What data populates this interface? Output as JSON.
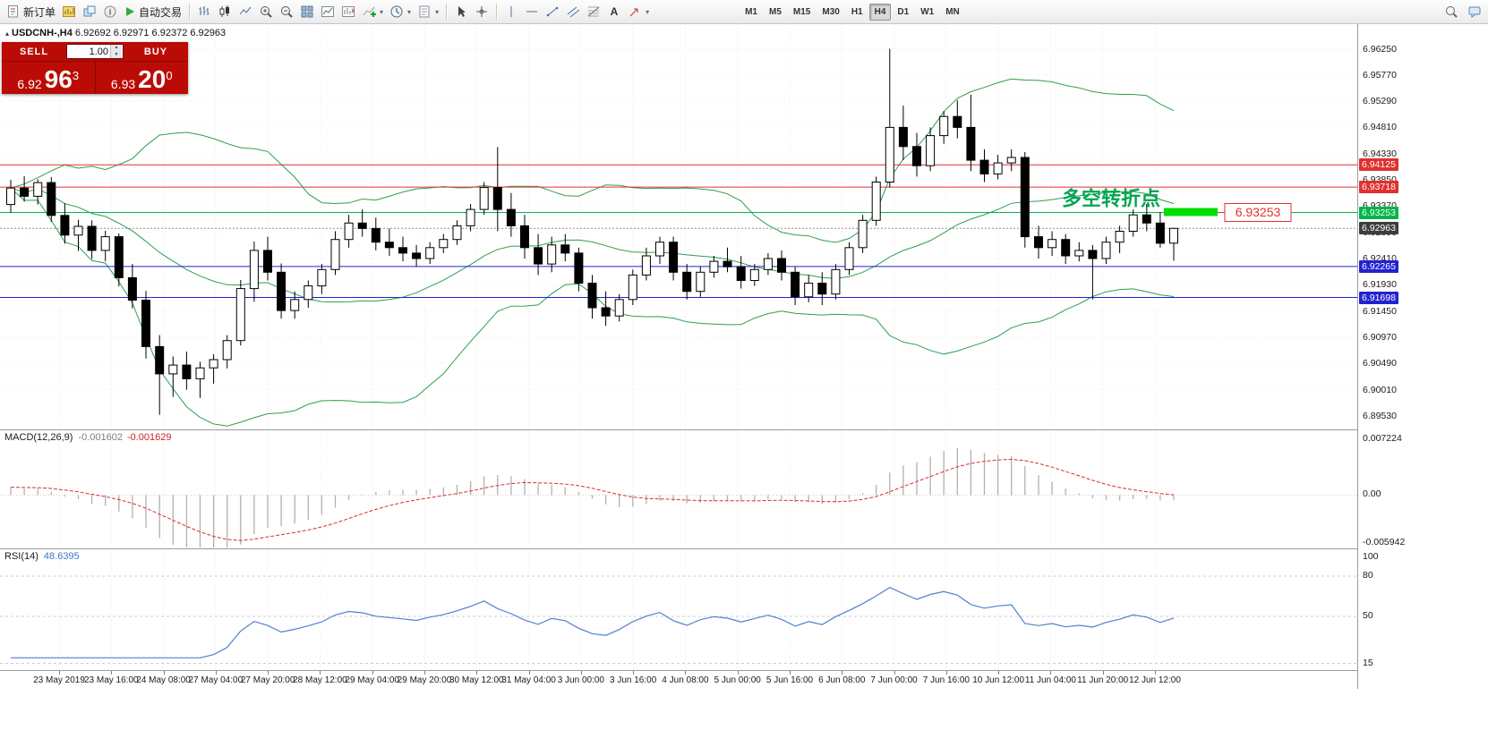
{
  "toolbar": {
    "new_order_label": "新订单",
    "auto_trading_label": "自动交易",
    "timeframes": [
      "M1",
      "M5",
      "M15",
      "M30",
      "H1",
      "H4",
      "D1",
      "W1",
      "MN"
    ],
    "active_timeframe": "H4",
    "caret": "▾"
  },
  "chart": {
    "marker": "▴",
    "symbol": "USDCNH-,H4",
    "ohlc": "6.92692 6.92971 6.92372 6.92963",
    "annotation": "多空转折点",
    "annotation_color": "#00a651",
    "pivot_value": 6.93253,
    "price_label_box": "6.93253",
    "price_label_color": "#e03030"
  },
  "trade_panel": {
    "sell_label": "SELL",
    "buy_label": "BUY",
    "volume": "1.00",
    "spinner_up": "▲",
    "spinner_down": "▼",
    "sell": {
      "prefix": "6.92",
      "pips": "96",
      "point": "3"
    },
    "buy": {
      "prefix": "6.93",
      "pips": "20",
      "point": "0"
    }
  },
  "price_axis": {
    "max": 6.967,
    "min": 6.893,
    "labels": [
      "6.96250",
      "6.95770",
      "6.95290",
      "6.94810",
      "6.94330",
      "6.93850",
      "6.93370",
      "6.92890",
      "6.92410",
      "6.91930",
      "6.91450",
      "6.90970",
      "6.90490",
      "6.90010",
      "6.89530"
    ]
  },
  "hlines": [
    {
      "value": 6.94125,
      "badge": "6.94125",
      "color": "#e03030"
    },
    {
      "value": 6.93718,
      "badge": "6.93718",
      "color": "#e03030"
    },
    {
      "value": 6.93253,
      "badge": "6.93253",
      "color": "#00b44a"
    },
    {
      "value": 6.92265,
      "badge": "6.92265",
      "color": "#2222d0"
    },
    {
      "value": 6.91698,
      "badge": "6.91698",
      "color": "#2222d0"
    }
  ],
  "current_price": {
    "value": 6.92963,
    "badge": "6.92963",
    "color": "#3d3d3d"
  },
  "macd": {
    "label": "MACD(12,26,9)",
    "value_main": "-0.001602",
    "value_signal": "-0.001629",
    "axis": [
      "0.007224",
      "0.00",
      "-0.005942"
    ]
  },
  "rsi": {
    "label": "RSI(14)",
    "value": "48.6395",
    "axis": [
      "100",
      "80",
      "50",
      "15"
    ],
    "levels": [
      80,
      50,
      15
    ]
  },
  "time_axis": [
    "23 May 2019",
    "23 May 16:00",
    "24 May 08:00",
    "27 May 04:00",
    "27 May 20:00",
    "28 May 12:00",
    "29 May 04:00",
    "29 May 20:00",
    "30 May 12:00",
    "31 May 04:00",
    "3 Jun 00:00",
    "3 Jun 16:00",
    "4 Jun 08:00",
    "5 Jun 00:00",
    "5 Jun 16:00",
    "6 Jun 08:00",
    "7 Jun 00:00",
    "7 Jun 16:00",
    "10 Jun 12:00",
    "11 Jun 04:00",
    "11 Jun 20:00",
    "12 Jun 12:00"
  ],
  "chart_data": {
    "type": "candlestick",
    "symbol": "USDCNH-",
    "timeframe": "H4",
    "price_range": [
      6.893,
      6.967
    ],
    "levels": [
      6.94125,
      6.93718,
      6.93253,
      6.92265,
      6.91698
    ],
    "indicators": [
      {
        "type": "bollinger",
        "period": 20,
        "deviation": 2,
        "color": "#2f9e4e"
      },
      {
        "type": "macd",
        "fast": 12,
        "slow": 26,
        "signal": 9,
        "current": [
          -0.001602,
          -0.001629
        ]
      },
      {
        "type": "rsi",
        "period": 14,
        "current": 48.6395
      }
    ],
    "candles": [
      [
        6.934,
        6.9385,
        6.9325,
        6.937
      ],
      [
        6.937,
        6.9392,
        6.9345,
        6.9355
      ],
      [
        6.9355,
        6.9386,
        6.934,
        6.938
      ],
      [
        6.938,
        6.939,
        6.9308,
        6.932
      ],
      [
        6.932,
        6.9342,
        6.9268,
        6.9284
      ],
      [
        6.9284,
        6.9312,
        6.9255,
        6.93
      ],
      [
        6.93,
        6.9311,
        6.924,
        6.9256
      ],
      [
        6.9256,
        6.9292,
        6.9236,
        6.9281
      ],
      [
        6.9281,
        6.9287,
        6.919,
        6.9206
      ],
      [
        6.9206,
        6.9231,
        6.915,
        6.9165
      ],
      [
        6.9165,
        6.9182,
        6.9058,
        6.908
      ],
      [
        6.908,
        6.9101,
        6.8955,
        6.903
      ],
      [
        6.903,
        6.9062,
        6.8988,
        6.9046
      ],
      [
        6.9046,
        6.9071,
        6.9001,
        6.9021
      ],
      [
        6.9021,
        6.9052,
        6.8986,
        6.9041
      ],
      [
        6.9041,
        6.9066,
        6.9012,
        6.9056
      ],
      [
        6.9056,
        6.9101,
        6.904,
        6.9091
      ],
      [
        6.9091,
        6.9202,
        6.9082,
        6.9186
      ],
      [
        6.9186,
        6.9272,
        6.9162,
        6.9256
      ],
      [
        6.9256,
        6.9281,
        6.9201,
        6.9216
      ],
      [
        6.9216,
        6.9232,
        6.9131,
        6.9146
      ],
      [
        6.9146,
        6.9181,
        6.9131,
        6.9166
      ],
      [
        6.9166,
        6.9201,
        6.9151,
        6.9191
      ],
      [
        6.9191,
        6.9231,
        6.9176,
        6.9221
      ],
      [
        6.9221,
        6.9291,
        6.9211,
        6.9276
      ],
      [
        6.9276,
        6.9321,
        6.9261,
        6.9306
      ],
      [
        6.9306,
        6.9331,
        6.9281,
        6.9296
      ],
      [
        6.9296,
        6.9316,
        6.9256,
        6.9271
      ],
      [
        6.9271,
        6.9296,
        6.9246,
        6.9261
      ],
      [
        6.9261,
        6.9281,
        6.9236,
        6.9251
      ],
      [
        6.9251,
        6.9266,
        6.9226,
        6.9241
      ],
      [
        6.9241,
        6.9271,
        6.9231,
        6.9261
      ],
      [
        6.9261,
        6.9286,
        6.9251,
        6.9276
      ],
      [
        6.9276,
        6.9311,
        6.9266,
        6.9301
      ],
      [
        6.9301,
        6.9341,
        6.9291,
        6.9331
      ],
      [
        6.9331,
        6.9381,
        6.9321,
        6.9371
      ],
      [
        6.9371,
        6.9445,
        6.9291,
        6.9331
      ],
      [
        6.9331,
        6.9361,
        6.9281,
        6.9301
      ],
      [
        6.9301,
        6.9321,
        6.9241,
        6.9261
      ],
      [
        6.9261,
        6.9286,
        6.9211,
        6.9231
      ],
      [
        6.9231,
        6.9281,
        6.9216,
        6.9266
      ],
      [
        6.9266,
        6.9286,
        6.9236,
        6.9251
      ],
      [
        6.9251,
        6.9261,
        6.9181,
        6.9196
      ],
      [
        6.9196,
        6.9211,
        6.9131,
        6.9151
      ],
      [
        6.9151,
        6.9181,
        6.9118,
        6.9136
      ],
      [
        6.9136,
        6.9176,
        6.9126,
        6.9166
      ],
      [
        6.9166,
        6.9221,
        6.9156,
        6.9211
      ],
      [
        6.9211,
        6.9261,
        6.9201,
        6.9246
      ],
      [
        6.9246,
        6.9281,
        6.9231,
        6.9271
      ],
      [
        6.9271,
        6.9281,
        6.9201,
        6.9216
      ],
      [
        6.9216,
        6.9231,
        6.9166,
        6.9181
      ],
      [
        6.9181,
        6.9226,
        6.9171,
        6.9216
      ],
      [
        6.9216,
        6.9246,
        6.9206,
        6.9236
      ],
      [
        6.9236,
        6.9261,
        6.9216,
        6.9226
      ],
      [
        6.9226,
        6.9246,
        6.9186,
        6.9201
      ],
      [
        6.9201,
        6.9231,
        6.9191,
        6.9221
      ],
      [
        6.9221,
        6.9251,
        6.9211,
        6.9241
      ],
      [
        6.9241,
        6.9256,
        6.9201,
        6.9216
      ],
      [
        6.9216,
        6.9226,
        6.9156,
        6.9171
      ],
      [
        6.9171,
        6.9211,
        6.9161,
        6.9196
      ],
      [
        6.9196,
        6.9216,
        6.9156,
        6.9176
      ],
      [
        6.9176,
        6.9231,
        6.9166,
        6.9221
      ],
      [
        6.9221,
        6.9271,
        6.9211,
        6.9261
      ],
      [
        6.9261,
        6.9321,
        6.9251,
        6.9311
      ],
      [
        6.9311,
        6.9391,
        6.9301,
        6.9381
      ],
      [
        6.9381,
        6.9625,
        6.9371,
        6.9481
      ],
      [
        6.9481,
        6.9521,
        6.9421,
        6.9446
      ],
      [
        6.9446,
        6.9471,
        6.9391,
        6.9411
      ],
      [
        6.9411,
        6.9481,
        6.9401,
        6.9466
      ],
      [
        6.9466,
        6.9511,
        6.9451,
        6.9501
      ],
      [
        6.9501,
        6.9531,
        6.9461,
        6.9481
      ],
      [
        6.9481,
        6.9541,
        6.9401,
        6.9421
      ],
      [
        6.9421,
        6.9441,
        6.9381,
        6.9396
      ],
      [
        6.9396,
        6.9431,
        6.9386,
        6.9416
      ],
      [
        6.9416,
        6.9441,
        6.9401,
        6.9426
      ],
      [
        6.9426,
        6.9436,
        6.9261,
        6.9281
      ],
      [
        6.9281,
        6.9301,
        6.9241,
        6.9261
      ],
      [
        6.9261,
        6.9291,
        6.9246,
        6.9276
      ],
      [
        6.9276,
        6.9286,
        6.9231,
        6.9246
      ],
      [
        6.9246,
        6.9271,
        6.9236,
        6.9256
      ],
      [
        6.9256,
        6.9266,
        6.9166,
        6.9241
      ],
      [
        6.9241,
        6.9281,
        6.9231,
        6.9271
      ],
      [
        6.9271,
        6.9301,
        6.9251,
        6.9291
      ],
      [
        6.9291,
        6.9331,
        6.9281,
        6.9321
      ],
      [
        6.9321,
        6.9341,
        6.9291,
        6.9306
      ],
      [
        6.9306,
        6.9326,
        6.9261,
        6.9269
      ],
      [
        6.92692,
        6.92971,
        6.92372,
        6.92963
      ]
    ]
  }
}
